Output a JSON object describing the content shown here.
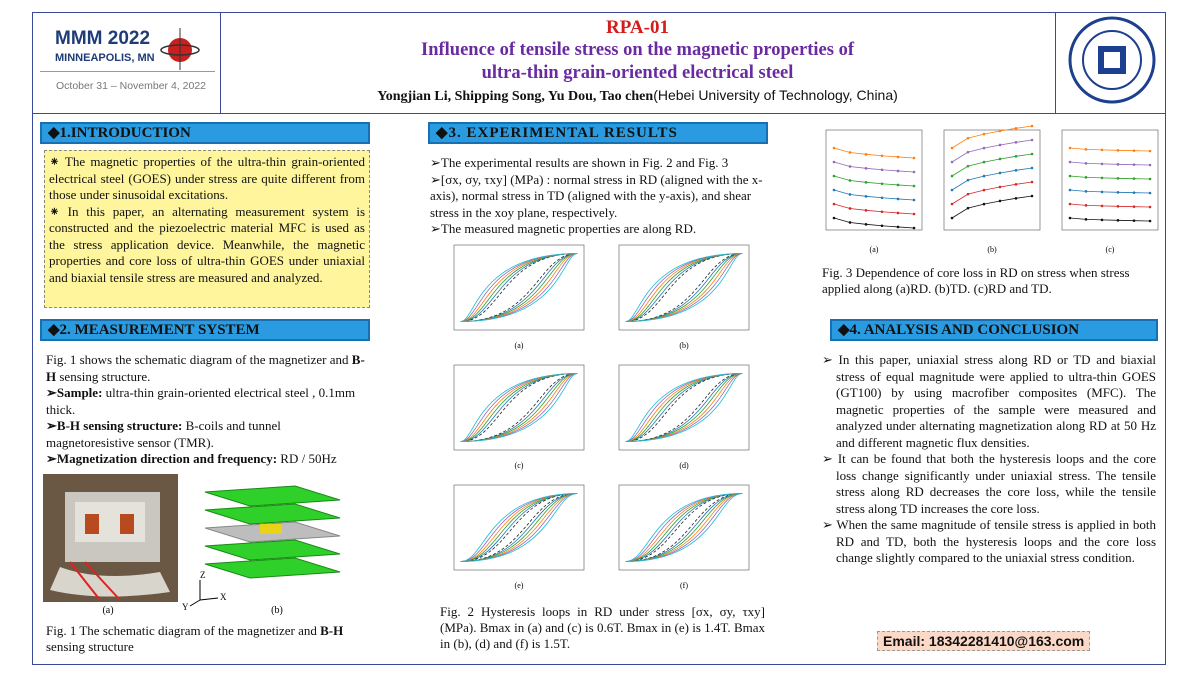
{
  "header": {
    "logo": {
      "title": "MMM 2022",
      "location": "MINNEAPOLIS, MN",
      "dates": "October 31 – November 4, 2022"
    },
    "code": "RPA-01",
    "title_lines": [
      "Influence of tensile stress on the magnetic properties of",
      "ultra-thin grain-oriented electrical steel"
    ],
    "authors": "Yongjian Li, Shipping Song, Yu Dou, Tao chen",
    "affiliation": "(Hebei University of Technology, China)"
  },
  "introduction": {
    "heading": "◆1.INTRODUCTION",
    "bullets": [
      "⁕ The magnetic properties of the ultra-thin grain-oriented electrical steel (GOES) under stress are quite different from those under sinusoidal excitations.",
      "⁕ In this paper, an alternating measurement system is constructed and the piezoelectric material MFC is used as the stress application device. Meanwhile, the magnetic properties and core loss of ultra-thin GOES under uniaxial and biaxial tensile stress are measured and analyzed."
    ]
  },
  "measurement": {
    "heading": "◆2. MEASUREMENT SYSTEM",
    "intro": [
      "Fig. 1 shows the schematic diagram of the magnetizer and ",
      "B-H",
      " sensing structure."
    ],
    "items": [
      {
        "label": "➢Sample:",
        "text": " ultra-thin grain-oriented electrical steel , 0.1mm thick."
      },
      {
        "label": "➢B-H sensing structure:",
        "text": " B-coils and tunnel magnetoresistive sensor (TMR)."
      },
      {
        "label": "➢Magnetization direction and frequency:",
        "text": " RD / 50Hz"
      }
    ],
    "figure_labels": [
      "(a)",
      "(b)"
    ],
    "axis_labels": [
      "Z",
      "X",
      "Y"
    ],
    "caption": [
      "Fig. 1 The schematic diagram of the magnetizer and ",
      "B-H",
      " sensing structure"
    ]
  },
  "experimental": {
    "heading": "◆3. EXPERIMENTAL RESULTS",
    "items": [
      "➢The experimental results are shown in Fig. 2 and Fig. 3",
      "➢[σx, σy, τxy] (MPa) : normal stress in RD (aligned with the x-axis), normal stress in TD (aligned with the y-axis), and shear stress in the xoy plane, respectively.",
      "➢The measured magnetic properties are along RD."
    ],
    "figure_labels": [
      "(a)",
      "(b)",
      "(c)",
      "(d)",
      "(e)",
      "(f)"
    ],
    "caption": "Fig. 2 Hysteresis loops in RD under stress [σx, σy, τxy] (MPa). Bmax in (a) and (c) is 0.6T. Bmax in (e) is 1.4T. Bmax in (b), (d) and (f) is 1.5T."
  },
  "core_loss": {
    "figure_labels": [
      "(a)",
      "(b)",
      "(c)"
    ],
    "caption": "Fig. 3 Dependence of core loss in RD on stress when stress applied along (a)RD. (b)TD. (c)RD and TD."
  },
  "analysis": {
    "heading": "◆4. ANALYSIS AND CONCLUSION",
    "bullets": [
      "➢ In this paper, uniaxial stress along RD or TD and biaxial stress of equal magnitude were applied to ultra-thin GOES (GT100) by using macrofiber composites (MFC). The magnetic properties of the sample were measured and analyzed under alternating magnetization along RD at 50 Hz and different magnetic flux densities.",
      "➢ It can be found that both the hysteresis loops and the core loss change significantly under uniaxial stress. The tensile stress along RD decreases the core loss, while the tensile stress along TD increases the core loss.",
      "➢ When the same magnitude of tensile stress is applied in both RD and TD, both the hysteresis loops and the core loss change slightly compared to the uniaxial stress condition."
    ],
    "email": "Email: 18342281410@163.com"
  }
}
